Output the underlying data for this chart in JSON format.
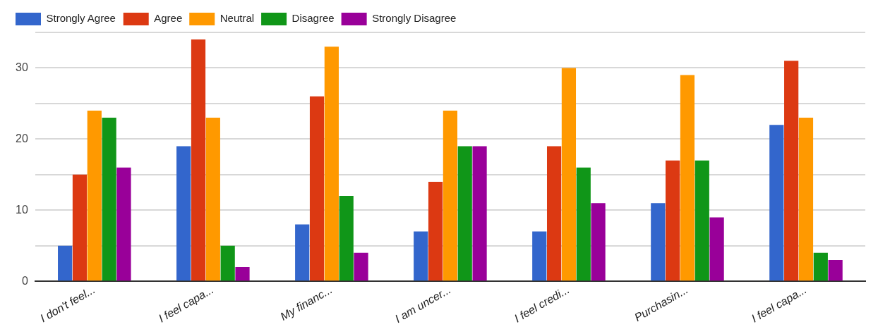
{
  "chart_data": {
    "type": "bar",
    "categories": [
      "I don't feel...",
      "I feel capa...",
      "My financ...",
      "I am uncer...",
      "I feel credi...",
      "Purchasin...",
      "I feel capa..."
    ],
    "series": [
      {
        "name": "Strongly Agree",
        "color": "#3366cc",
        "values": [
          5,
          19,
          8,
          7,
          7,
          11,
          22
        ]
      },
      {
        "name": "Agree",
        "color": "#dc3912",
        "values": [
          15,
          34,
          26,
          14,
          19,
          17,
          31
        ]
      },
      {
        "name": "Neutral",
        "color": "#ff9900",
        "values": [
          24,
          23,
          33,
          24,
          30,
          29,
          23
        ]
      },
      {
        "name": "Disagree",
        "color": "#109618",
        "values": [
          23,
          5,
          12,
          19,
          16,
          17,
          4
        ]
      },
      {
        "name": "Strongly Disagree",
        "color": "#990099",
        "values": [
          16,
          2,
          4,
          19,
          11,
          9,
          3
        ]
      }
    ],
    "ylim": [
      0,
      35
    ],
    "yticks": [
      0,
      {
        "value": 5,
        "label": null
      },
      10,
      {
        "value": 15,
        "label": null
      },
      20,
      {
        "value": 25,
        "label": null
      },
      30,
      {
        "value": 35,
        "label": null
      }
    ],
    "grid": "y",
    "legend": "top left"
  }
}
